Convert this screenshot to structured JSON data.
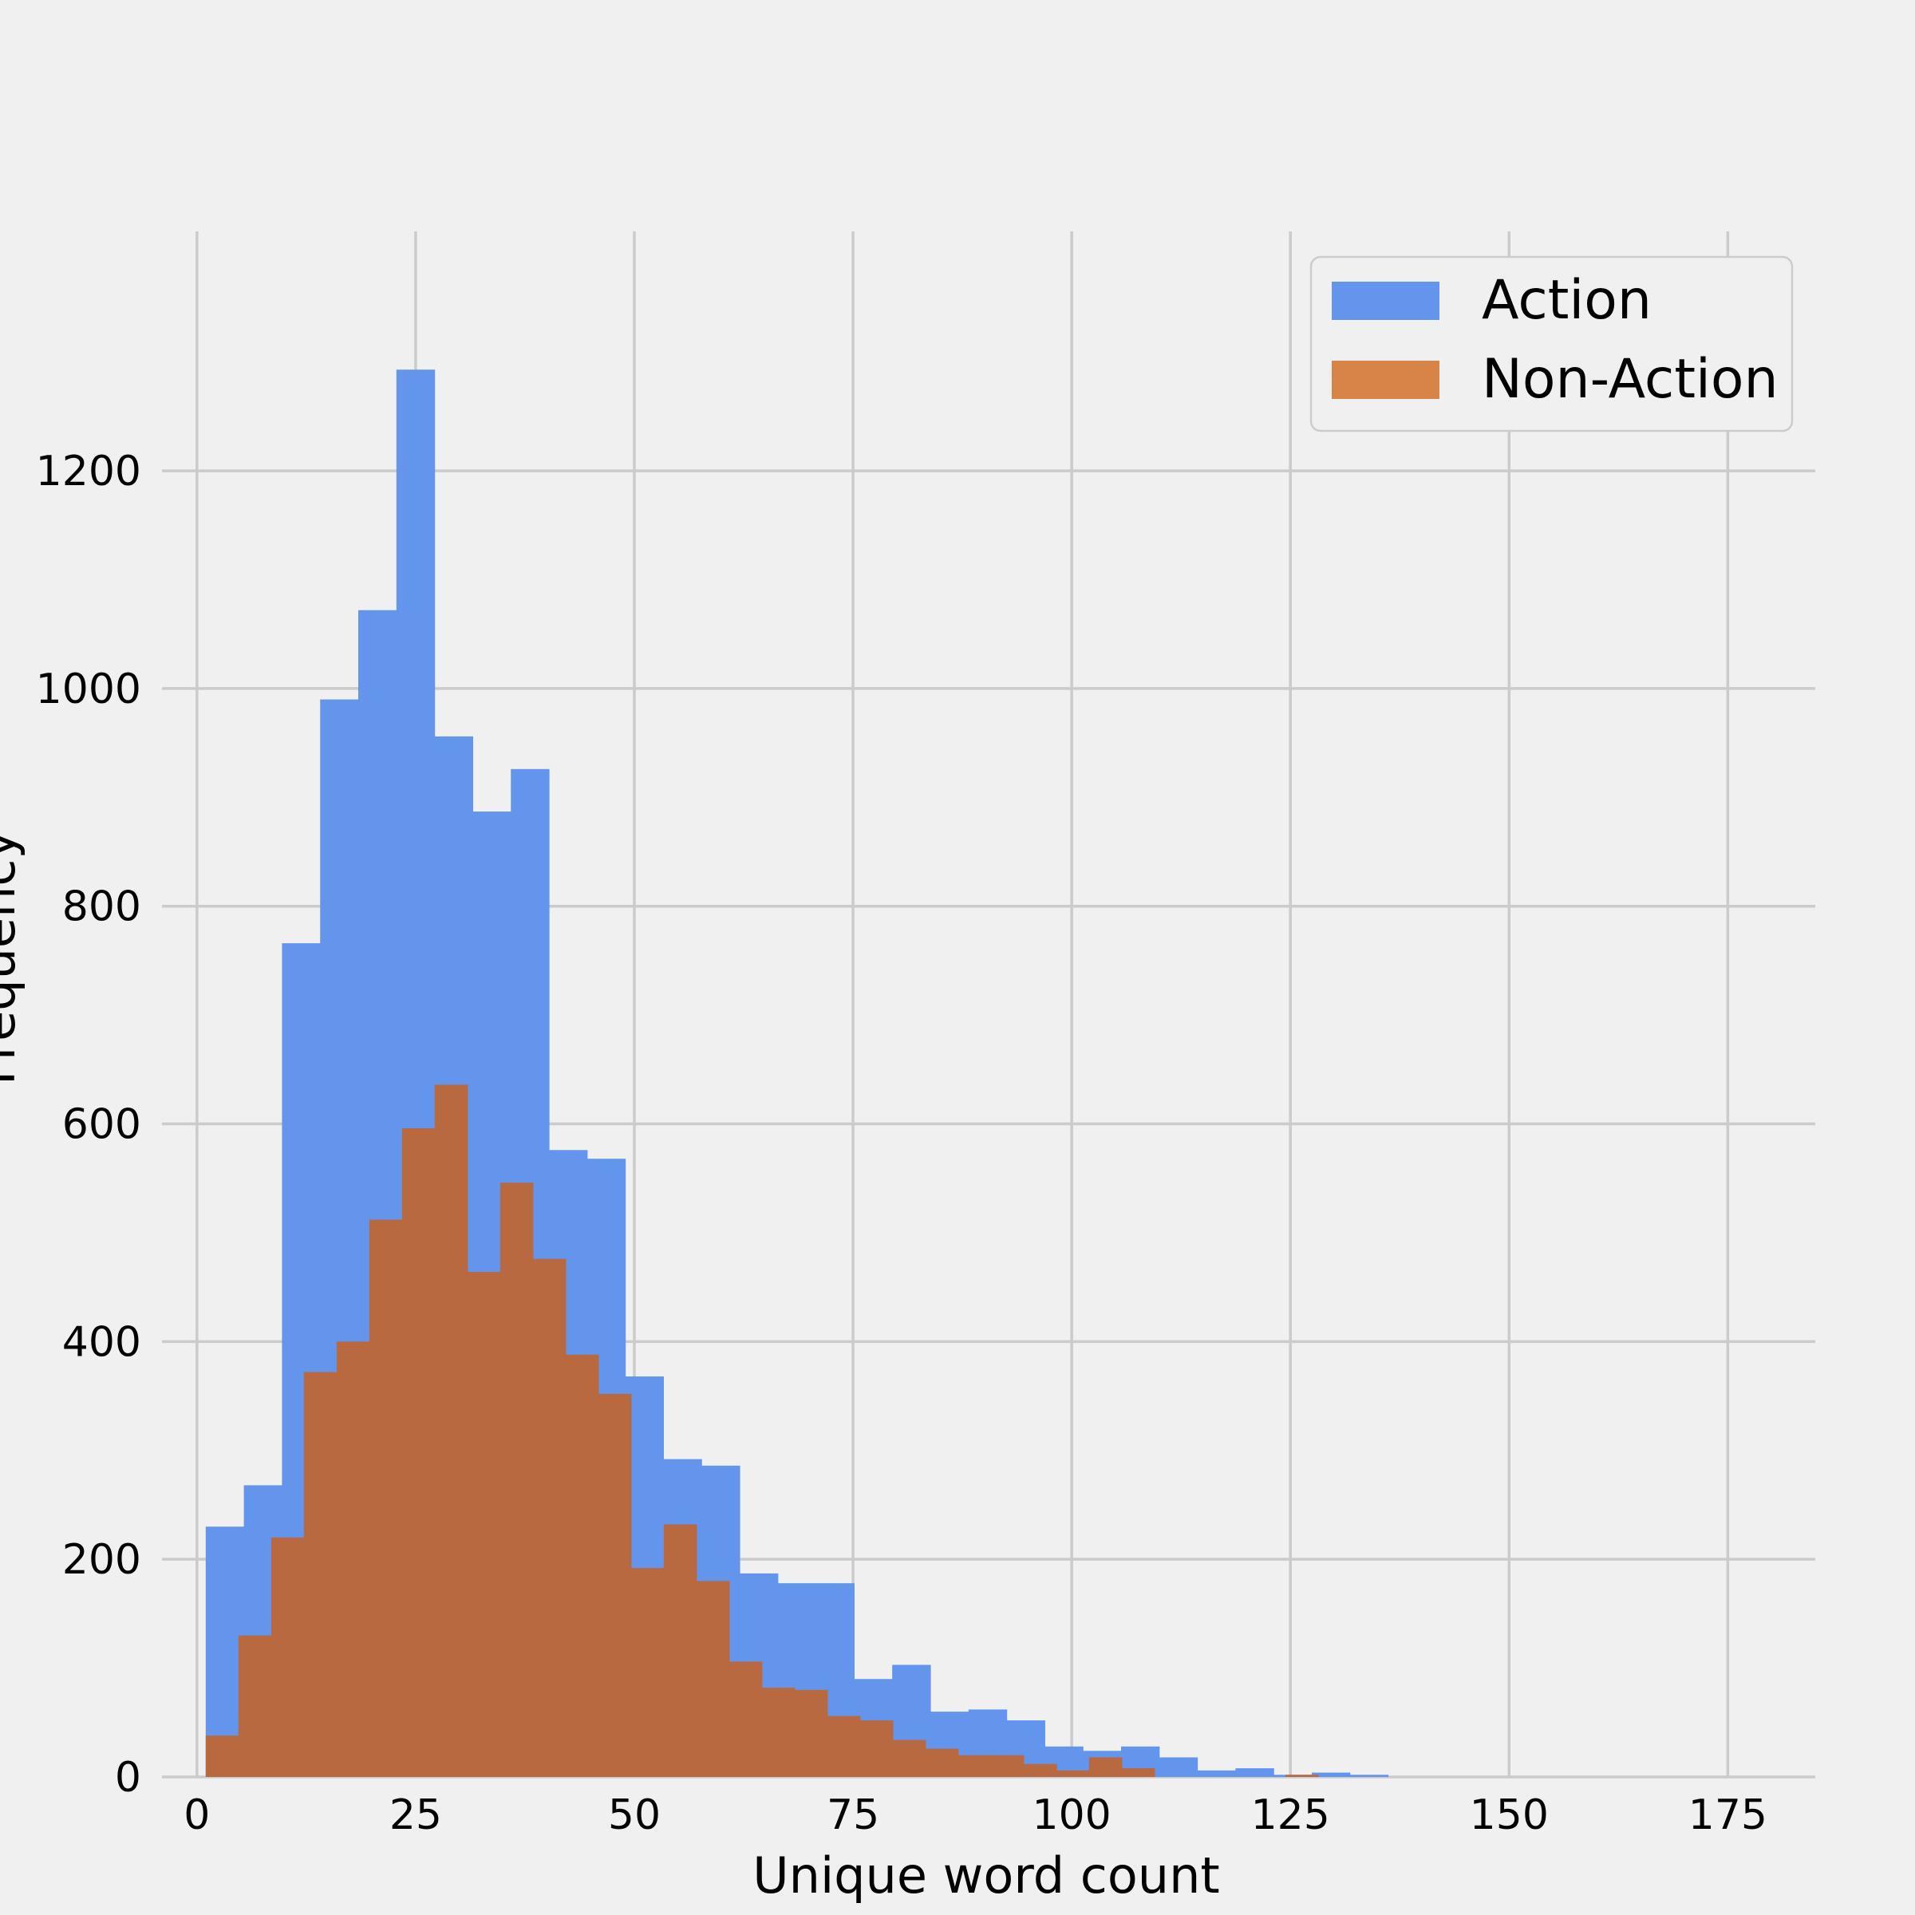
{
  "chart_data": {
    "type": "bar",
    "subtype": "histogram-overlay",
    "xlabel": "Unique word count",
    "ylabel": "Frequency",
    "xlim": [
      -4,
      185
    ],
    "ylim": [
      0,
      1420
    ],
    "xticks": [
      0,
      25,
      50,
      75,
      100,
      125,
      150,
      175
    ],
    "xtick_labels": [
      "0",
      "25",
      "50",
      "75",
      "100",
      "125",
      "150",
      "175"
    ],
    "yticks": [
      0,
      200,
      400,
      600,
      800,
      1000,
      1200
    ],
    "ytick_labels": [
      "0",
      "200",
      "400",
      "600",
      "800",
      "1000",
      "1200"
    ],
    "grid": true,
    "legend": "top-right",
    "colors": {
      "background": "#f0f0f0",
      "grid": "#cbcbcb",
      "action": "#6495ed",
      "non_action": "#b8693f",
      "non_action_legend": "#d88348"
    },
    "series": [
      {
        "name": "Action",
        "color": "#6495ed",
        "bin_edges": [
          1,
          5.36,
          9.72,
          14.08,
          18.44,
          22.8,
          27.16,
          31.52,
          35.88,
          40.24,
          44.6,
          48.96,
          53.32,
          57.68,
          62.04,
          66.4,
          70.76,
          75.12,
          79.48,
          83.84,
          88.2,
          92.56,
          96.92,
          101.28,
          105.64,
          110,
          114.36,
          118.72,
          123.08,
          127.44,
          131.8,
          136.16
        ],
        "values": [
          230,
          268,
          766,
          990,
          1072,
          1293,
          956,
          887,
          926,
          576,
          568,
          368,
          292,
          286,
          187,
          178,
          178,
          90,
          103,
          60,
          62,
          52,
          28,
          24,
          28,
          18,
          6,
          8,
          2,
          4,
          2
        ]
      },
      {
        "name": "Non-Action",
        "color": "#b8693f",
        "bin_edges": [
          1,
          4.74,
          8.48,
          12.22,
          15.96,
          19.7,
          23.44,
          27.18,
          30.92,
          34.66,
          38.4,
          42.14,
          45.88,
          49.62,
          53.36,
          57.1,
          60.84,
          64.58,
          68.32,
          72.06,
          75.8,
          79.54,
          83.28,
          87.02,
          90.76,
          94.5,
          98.24,
          101.98,
          105.72,
          109.46,
          113.2,
          116.94,
          120.68,
          124.42,
          128.16,
          131.9
        ],
        "values": [
          38,
          130,
          220,
          372,
          400,
          512,
          596,
          636,
          464,
          546,
          476,
          388,
          352,
          192,
          232,
          180,
          106,
          82,
          80,
          56,
          52,
          34,
          26,
          20,
          20,
          12,
          6,
          18,
          8,
          0,
          0,
          0,
          0,
          2,
          0
        ]
      }
    ]
  }
}
